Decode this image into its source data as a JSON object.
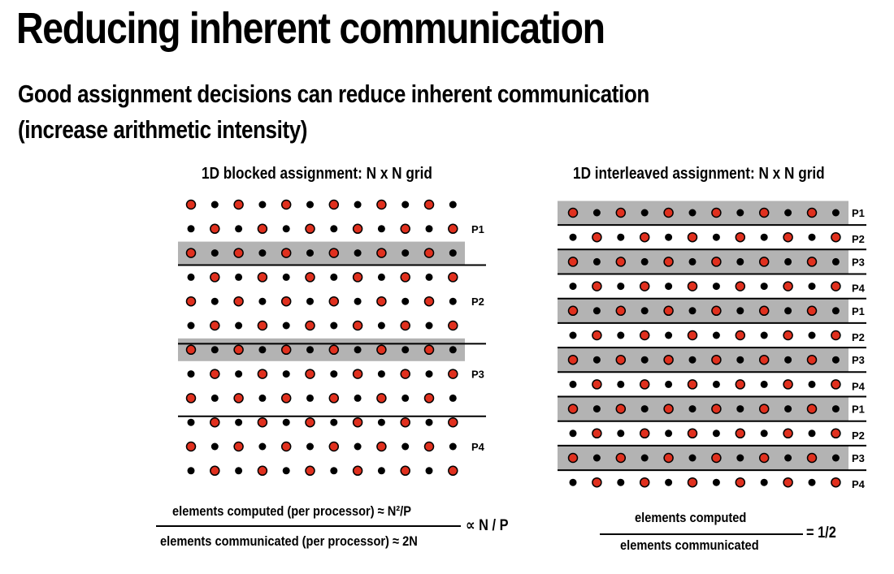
{
  "title": "Reducing inherent communication",
  "subtitle_line1": "Good assignment decisions can reduce inherent communication",
  "subtitle_line2": "(increase arithmetic intensity)",
  "left": {
    "heading": "1D blocked assignment: N x N grid",
    "processor_labels": [
      "P1",
      "P2",
      "P3",
      "P4"
    ],
    "numerator": "elements computed (per processor) ≈ N²/P",
    "denominator": "elements communicated (per processor) ≈ 2N",
    "result": "∝ N / P"
  },
  "right": {
    "heading": "1D interleaved assignment: N x N grid",
    "processor_labels": [
      "P1",
      "P2",
      "P3",
      "P4",
      "P1",
      "P2",
      "P3",
      "P4",
      "P1",
      "P2",
      "P3",
      "P4"
    ],
    "numerator": "elements computed",
    "denominator": "elements communicated",
    "result": "= 1/2"
  },
  "colors": {
    "red_dot": "#e0301e",
    "black_dot": "#000000",
    "highlight_band": "#b3b3b3"
  }
}
